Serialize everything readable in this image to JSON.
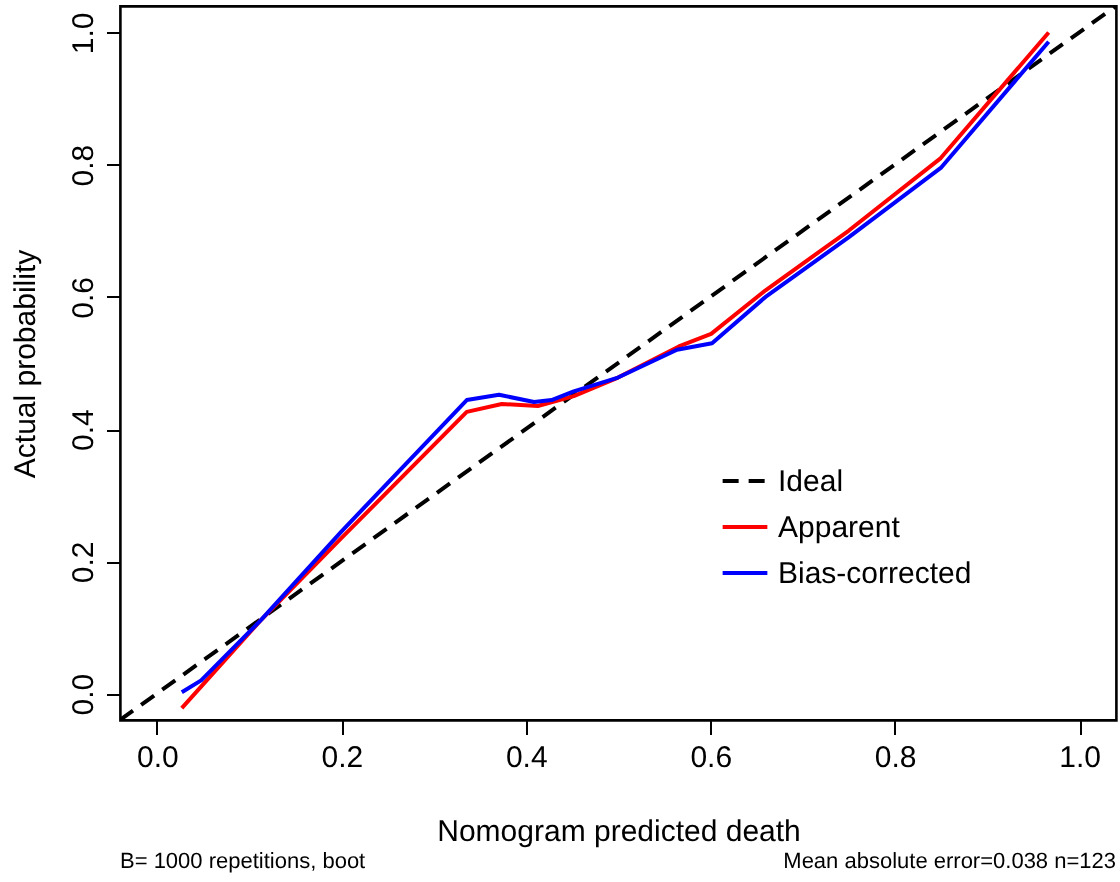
{
  "chart_data": {
    "type": "line",
    "xlabel": "Nomogram predicted death",
    "ylabel": "Actual probability",
    "xlim": [
      -0.04,
      1.04
    ],
    "ylim": [
      -0.04,
      1.04
    ],
    "xticks": [
      {
        "value": 0,
        "label": "0.0"
      },
      0.2,
      0.4,
      0.6,
      0.8,
      {
        "value": 1,
        "label": "1.0"
      }
    ],
    "yticks": [
      {
        "value": 0,
        "label": "0.0"
      },
      0.2,
      0.4,
      0.6,
      0.8,
      {
        "value": 1,
        "label": "1.0"
      }
    ],
    "grid": false,
    "legend": "right",
    "marker": "none",
    "annotations": [
      "B= 1000 repetitions, boot",
      "Mean absolute error=0.038 n=123"
    ],
    "series": [
      {
        "name": "Ideal",
        "color": "#000000",
        "line_style": "dashed",
        "x": [
          -0.04,
          1.04
        ],
        "values": [
          -0.04,
          1.04
        ]
      },
      {
        "name": "Apparent",
        "color": "#ff0000",
        "line_style": "solid",
        "x": [
          0.027,
          0.112,
          0.2,
          0.336,
          0.374,
          0.413,
          0.452,
          0.5,
          0.566,
          0.601,
          0.66,
          0.75,
          0.85,
          0.967
        ],
        "values": [
          -0.022,
          0.11,
          0.235,
          0.426,
          0.438,
          0.435,
          0.45,
          0.478,
          0.525,
          0.544,
          0.61,
          0.7,
          0.81,
          1.0
        ]
      },
      {
        "name": "Bias-corrected",
        "color": "#0000ff",
        "line_style": "solid",
        "x": [
          0.027,
          0.048,
          0.112,
          0.2,
          0.336,
          0.371,
          0.409,
          0.428,
          0.452,
          0.5,
          0.564,
          0.602,
          0.66,
          0.75,
          0.85,
          0.967
        ],
        "values": [
          0.002,
          0.02,
          0.11,
          0.245,
          0.444,
          0.452,
          0.441,
          0.444,
          0.457,
          0.478,
          0.52,
          0.53,
          0.6,
          0.69,
          0.795,
          0.986
        ]
      }
    ]
  }
}
